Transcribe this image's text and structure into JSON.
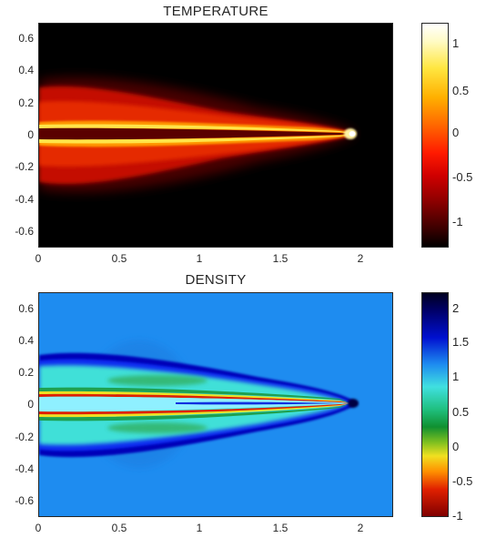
{
  "panels": [
    {
      "title": "TEMPERATURE",
      "y_ticks": [
        "0.6",
        "0.4",
        "0.2",
        "0",
        "-0.2",
        "-0.4",
        "-0.6"
      ],
      "x_ticks": [
        "0",
        "0.5",
        "1",
        "1.5",
        "2"
      ],
      "colorbar_ticks": [
        "1",
        "0.5",
        "0",
        "-0.5",
        "-1"
      ],
      "colors": {
        "background": "#000000",
        "tip": "#ffffff"
      }
    },
    {
      "title": "DENSITY",
      "y_ticks": [
        "0.6",
        "0.4",
        "0.2",
        "0",
        "-0.2",
        "-0.4",
        "-0.6"
      ],
      "x_ticks": [
        "0",
        "0.5",
        "1",
        "1.5",
        "2"
      ],
      "colorbar_ticks": [
        "2",
        "1.5",
        "1",
        "0.5",
        "0",
        "-0.5",
        "-1"
      ],
      "colors": {
        "background": "#1e8cf0",
        "tip": "#000030"
      }
    }
  ]
}
